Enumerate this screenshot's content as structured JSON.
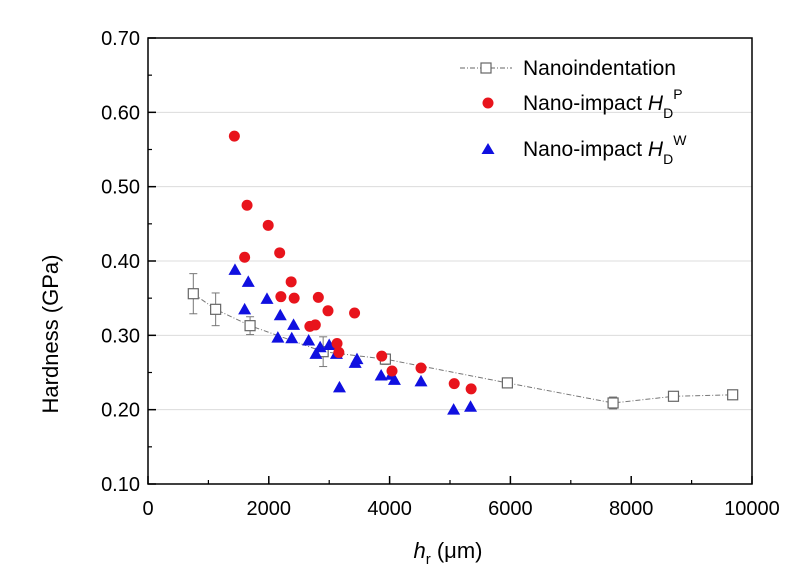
{
  "chart_data": {
    "type": "scatter",
    "xlabel": {
      "italic": "h",
      "sub": "r",
      "unit": " (μm)"
    },
    "ylabel": "Hardness (GPa)",
    "xlim": [
      0,
      10000
    ],
    "ylim": [
      0.1,
      0.7
    ],
    "x_ticks": [
      0,
      2000,
      4000,
      6000,
      8000,
      10000
    ],
    "x_tick_labels": [
      "0",
      "2000",
      "4000",
      "6000",
      "8000",
      "10000"
    ],
    "y_ticks": [
      0.1,
      0.2,
      0.3,
      0.4,
      0.5,
      0.6,
      0.7
    ],
    "y_tick_labels": [
      "0.10",
      "0.20",
      "0.30",
      "0.40",
      "0.50",
      "0.60",
      "0.70"
    ],
    "grid": "horizontal",
    "legend_position": "top-right",
    "series": [
      {
        "name": "Nanoindentation",
        "marker": "open-square",
        "color": "#666666",
        "line": "dash-dot",
        "x": [
          750,
          1120,
          1690,
          2900,
          3930,
          5950,
          7700,
          8700,
          9680
        ],
        "y": [
          0.356,
          0.335,
          0.313,
          0.278,
          0.268,
          0.236,
          0.209,
          0.218,
          0.22
        ],
        "err": [
          0.027,
          0.022,
          0.012,
          0.02,
          0.007,
          0.005,
          0.008,
          0.005,
          0.005
        ]
      },
      {
        "name": "Nano-impact",
        "legend_italic": "H",
        "legend_sub": "D",
        "legend_sup": "P",
        "marker": "circle",
        "color": "#e8141c",
        "x": [
          1430,
          1600,
          1640,
          1990,
          2180,
          2200,
          2370,
          2420,
          2680,
          2770,
          2820,
          2980,
          3130,
          3160,
          3420,
          3870,
          4040,
          4520,
          5070,
          5350
        ],
        "y": [
          0.568,
          0.405,
          0.475,
          0.448,
          0.411,
          0.352,
          0.372,
          0.35,
          0.312,
          0.314,
          0.351,
          0.333,
          0.289,
          0.277,
          0.33,
          0.272,
          0.252,
          0.256,
          0.235,
          0.228
        ]
      },
      {
        "name": "Nano-impact",
        "legend_italic": "H",
        "legend_sub": "D",
        "legend_sup": "W",
        "marker": "triangle",
        "color": "#1010e0",
        "x": [
          1440,
          1600,
          1660,
          1970,
          2150,
          2190,
          2380,
          2410,
          2660,
          2780,
          2850,
          3000,
          3120,
          3170,
          3430,
          3460,
          3860,
          4030,
          4080,
          4520,
          5060,
          5340
        ],
        "y": [
          0.388,
          0.335,
          0.372,
          0.349,
          0.297,
          0.327,
          0.296,
          0.314,
          0.293,
          0.275,
          0.284,
          0.287,
          0.275,
          0.23,
          0.263,
          0.268,
          0.246,
          0.247,
          0.24,
          0.238,
          0.2,
          0.204
        ]
      }
    ]
  }
}
